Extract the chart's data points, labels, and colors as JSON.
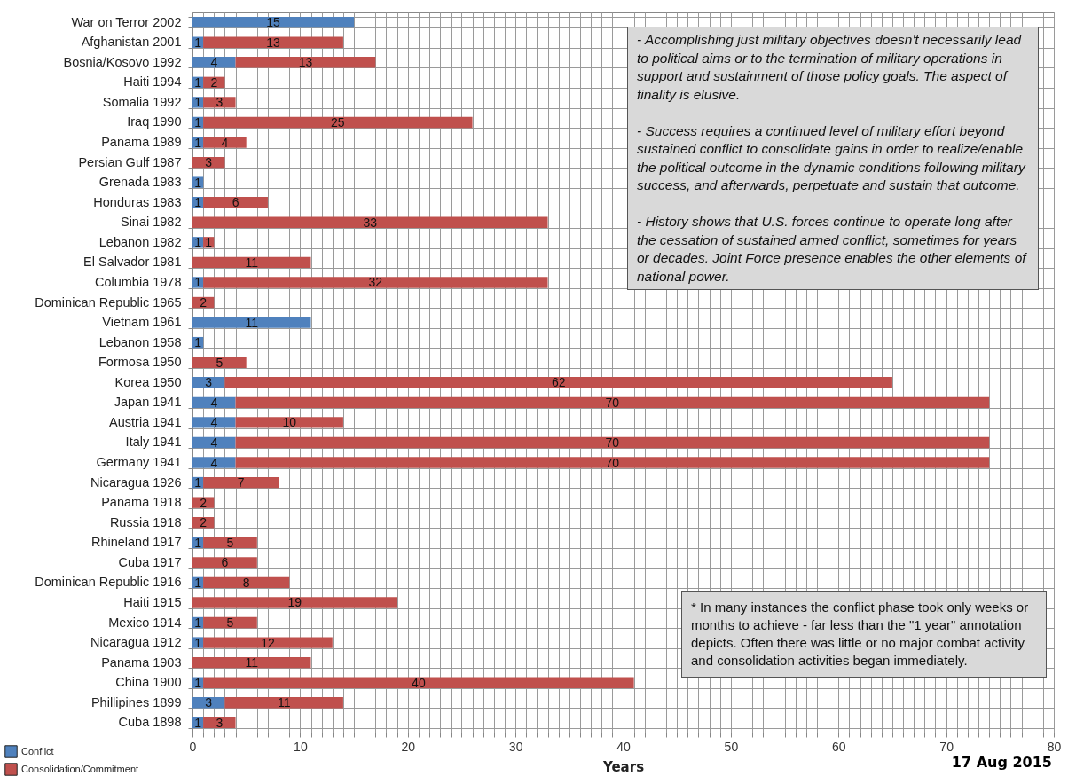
{
  "chart_data": {
    "type": "bar",
    "orientation": "horizontal",
    "stacked": true,
    "xlabel": "Years",
    "categories": [
      "War on Terror 2002",
      "Afghanistan 2001",
      "Bosnia/Kosovo 1992",
      "Haiti 1994",
      "Somalia 1992",
      "Iraq 1990",
      "Panama 1989",
      "Persian Gulf 1987",
      "Grenada 1983",
      "Honduras 1983",
      "Sinai 1982",
      "Lebanon 1982",
      "El Salvador 1981",
      "Columbia 1978",
      "Dominican Republic 1965",
      "Vietnam 1961",
      "Lebanon 1958",
      "Formosa 1950",
      "Korea 1950",
      "Japan 1941",
      "Austria 1941",
      "Italy 1941",
      "Germany 1941",
      "Nicaragua 1926",
      "Panama 1918",
      "Russia 1918",
      "Rhineland 1917",
      "Cuba 1917",
      "Dominican Republic 1916",
      "Haiti 1915",
      "Mexico 1914",
      "Nicaragua 1912",
      "Panama 1903",
      "China 1900",
      "Phillipines 1899",
      "Cuba 1898"
    ],
    "series": [
      {
        "name": "Conflict",
        "color": "#4f81bd",
        "values": [
          15,
          1,
          4,
          1,
          1,
          1,
          1,
          null,
          1,
          1,
          null,
          1,
          null,
          1,
          null,
          11,
          1,
          null,
          3,
          4,
          4,
          4,
          4,
          1,
          null,
          null,
          1,
          null,
          1,
          null,
          1,
          1,
          null,
          1,
          3,
          1
        ]
      },
      {
        "name": "Consolidation/Commitment",
        "color": "#c0504d",
        "values": [
          null,
          13,
          13,
          2,
          3,
          25,
          4,
          3,
          null,
          6,
          33,
          1,
          11,
          32,
          2,
          null,
          null,
          5,
          62,
          70,
          10,
          70,
          70,
          7,
          2,
          2,
          5,
          6,
          8,
          19,
          5,
          12,
          11,
          40,
          11,
          3
        ]
      }
    ],
    "xlim": [
      0,
      80
    ],
    "xticks": [
      0,
      {
        "value": 1,
        "label": null
      },
      {
        "value": 2,
        "label": null
      },
      {
        "value": 3,
        "label": null
      },
      {
        "value": 4,
        "label": null
      },
      {
        "value": 5,
        "label": null
      },
      {
        "value": 6,
        "label": null
      },
      {
        "value": 7,
        "label": null
      },
      {
        "value": 8,
        "label": null
      },
      {
        "value": 9,
        "label": null
      },
      10,
      {
        "value": 11,
        "label": null
      },
      {
        "value": 12,
        "label": null
      },
      {
        "value": 13,
        "label": null
      },
      {
        "value": 14,
        "label": null
      },
      {
        "value": 15,
        "label": null
      },
      {
        "value": 16,
        "label": null
      },
      {
        "value": 17,
        "label": null
      },
      {
        "value": 18,
        "label": null
      },
      {
        "value": 19,
        "label": null
      },
      20,
      {
        "value": 21,
        "label": null
      },
      {
        "value": 22,
        "label": null
      },
      {
        "value": 23,
        "label": null
      },
      {
        "value": 24,
        "label": null
      },
      {
        "value": 25,
        "label": null
      },
      {
        "value": 26,
        "label": null
      },
      {
        "value": 27,
        "label": null
      },
      {
        "value": 28,
        "label": null
      },
      {
        "value": 29,
        "label": null
      },
      30,
      {
        "value": 31,
        "label": null
      },
      {
        "value": 32,
        "label": null
      },
      {
        "value": 33,
        "label": null
      },
      {
        "value": 34,
        "label": null
      },
      {
        "value": 35,
        "label": null
      },
      {
        "value": 36,
        "label": null
      },
      {
        "value": 37,
        "label": null
      },
      {
        "value": 38,
        "label": null
      },
      {
        "value": 39,
        "label": null
      },
      40,
      {
        "value": 41,
        "label": null
      },
      {
        "value": 42,
        "label": null
      },
      {
        "value": 43,
        "label": null
      },
      {
        "value": 44,
        "label": null
      },
      {
        "value": 45,
        "label": null
      },
      {
        "value": 46,
        "label": null
      },
      {
        "value": 47,
        "label": null
      },
      {
        "value": 48,
        "label": null
      },
      {
        "value": 49,
        "label": null
      },
      50,
      {
        "value": 51,
        "label": null
      },
      {
        "value": 52,
        "label": null
      },
      {
        "value": 53,
        "label": null
      },
      {
        "value": 54,
        "label": null
      },
      {
        "value": 55,
        "label": null
      },
      {
        "value": 56,
        "label": null
      },
      {
        "value": 57,
        "label": null
      },
      {
        "value": 58,
        "label": null
      },
      {
        "value": 59,
        "label": null
      },
      60,
      {
        "value": 61,
        "label": null
      },
      {
        "value": 62,
        "label": null
      },
      {
        "value": 63,
        "label": null
      },
      {
        "value": 64,
        "label": null
      },
      {
        "value": 65,
        "label": null
      },
      {
        "value": 66,
        "label": null
      },
      {
        "value": 67,
        "label": null
      },
      {
        "value": 68,
        "label": null
      },
      {
        "value": 69,
        "label": null
      },
      70,
      {
        "value": 71,
        "label": null
      },
      {
        "value": 72,
        "label": null
      },
      {
        "value": 73,
        "label": null
      },
      {
        "value": 74,
        "label": null
      },
      {
        "value": 75,
        "label": null
      },
      {
        "value": 76,
        "label": null
      },
      {
        "value": 77,
        "label": null
      },
      {
        "value": 78,
        "label": null
      },
      {
        "value": 79,
        "label": null
      },
      80
    ],
    "grid": true,
    "data_labels": true,
    "legend": "bottom left",
    "annotations": [
      " -  Accomplishing just military objectives doesn't necessarily  lead to political aims or to the termination of military operations in support and sustainment of those policy goals. The aspect of finality is elusive.\n\n -  Success requires a continued level of military effort beyond sustained conflict  to consolidate gains in order to realize/enable  the political outcome in the dynamic conditions following  military success, and afterwards, perpetuate and sustain that outcome.\n\n -  History shows that U.S. forces continue to operate long after the cessation of sustained armed conflict, sometimes for years or decades.  Joint Force presence enables the other elements of national power.",
      "* In many instances the conflict phase took only weeks or months to achieve - far less than the \"1 year\" annotation depicts.  Often there was little or no major combat activity and consolidation  activities began immediately.",
      "17 Aug 2015"
    ]
  }
}
